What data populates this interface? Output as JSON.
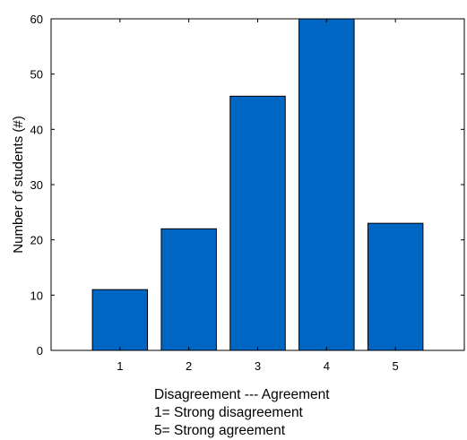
{
  "chart_data": {
    "type": "bar",
    "categories": [
      "1",
      "2",
      "3",
      "4",
      "5"
    ],
    "values": [
      11,
      22,
      46,
      60,
      23
    ],
    "title": "",
    "xlabel": "",
    "ylabel": "Number of students (#)",
    "ylim": [
      0,
      60
    ],
    "xlim": [
      0,
      6
    ],
    "yticks": [
      0,
      10,
      20,
      30,
      40,
      50,
      60
    ],
    "grid": false,
    "bar_color": "#0066c4",
    "bar_edge_color": "#000000"
  },
  "caption": {
    "line1": "Disagreement  --- Agreement",
    "line2": "1= Strong disagreement",
    "line3": "5= Strong agreement"
  }
}
